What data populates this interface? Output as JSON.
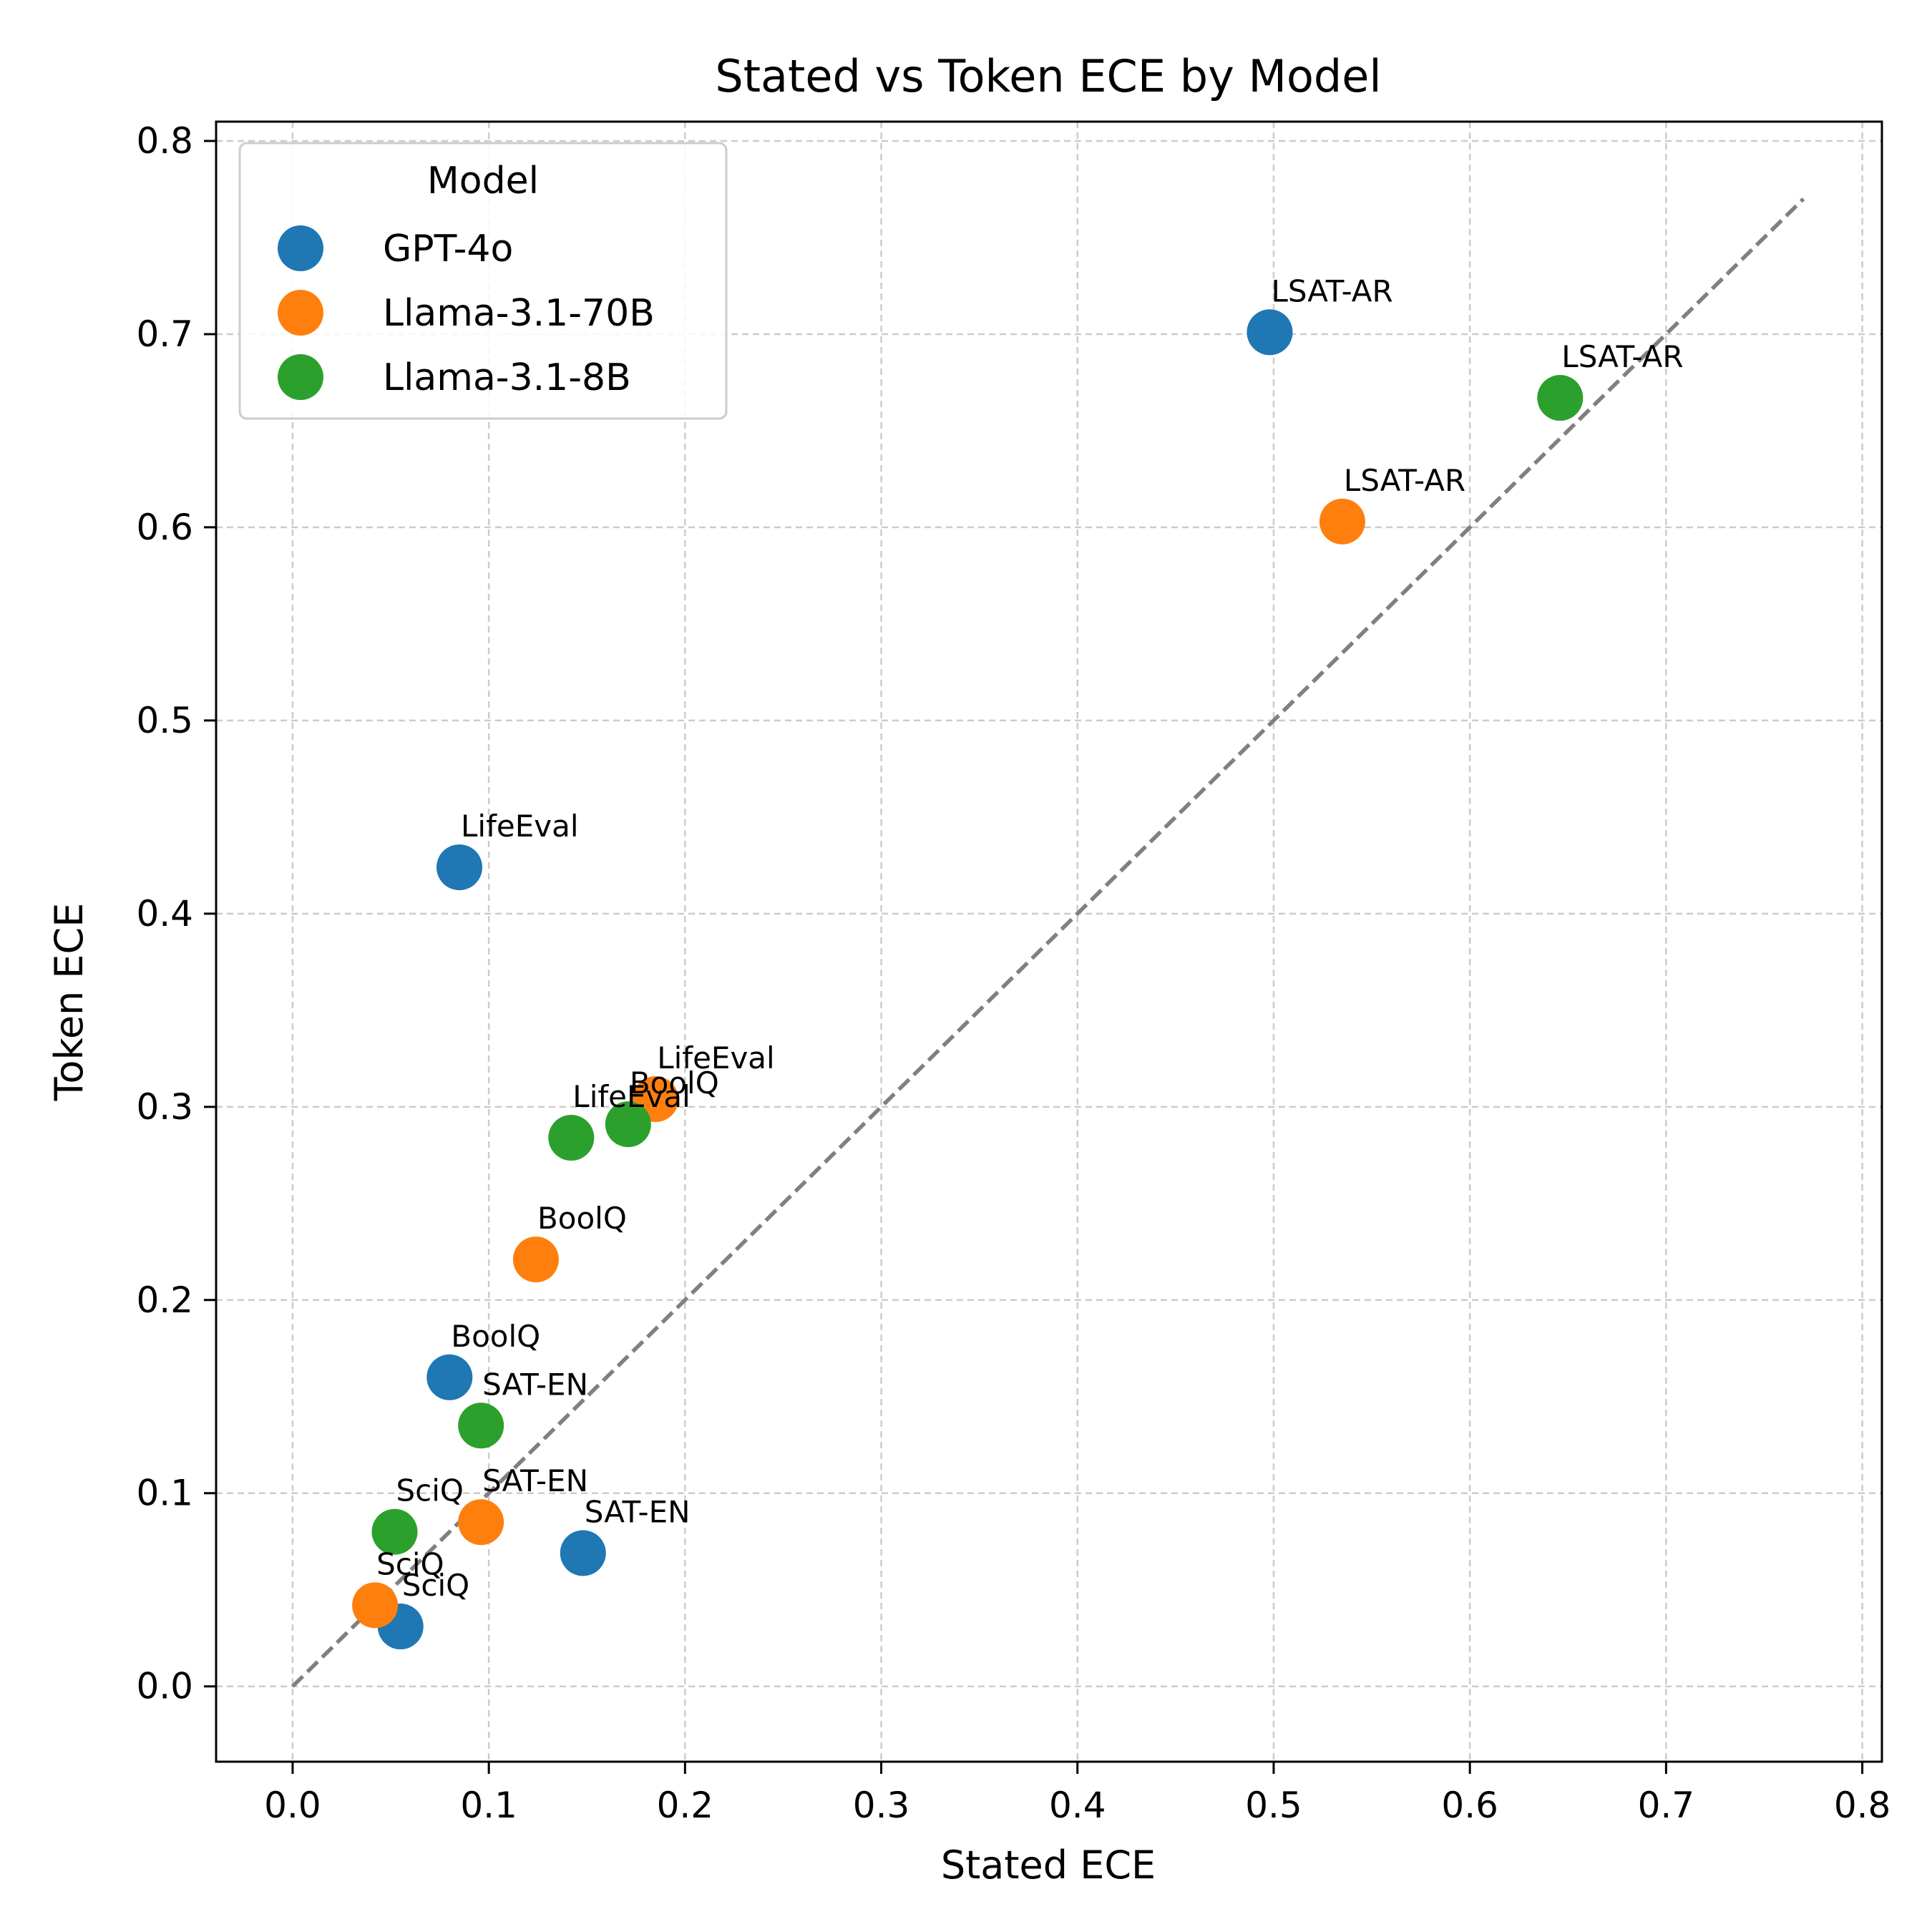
{
  "chart_data": {
    "type": "scatter",
    "title": "Stated vs Token ECE by Model",
    "xlabel": "Stated ECE",
    "ylabel": "Token ECE",
    "xlim": [
      -0.039,
      0.81
    ],
    "ylim": [
      -0.039,
      0.81
    ],
    "xticks": [
      "0.0",
      "0.1",
      "0.2",
      "0.3",
      "0.4",
      "0.5",
      "0.6",
      "0.7",
      "0.8"
    ],
    "yticks": [
      "0.0",
      "0.1",
      "0.2",
      "0.3",
      "0.4",
      "0.5",
      "0.6",
      "0.7",
      "0.8"
    ],
    "grid": true,
    "reference_line": {
      "style": "dashed",
      "color": "#808080",
      "from": [
        0,
        0
      ],
      "to": [
        0.77,
        0.77
      ]
    },
    "legend": {
      "title": "Model",
      "placement": "top-left"
    },
    "series": [
      {
        "name": "GPT-4o",
        "color": "#1f77b4",
        "points": [
          {
            "label": "LSAT-AR",
            "x": 0.498,
            "y": 0.701
          },
          {
            "label": "LifeEval",
            "x": 0.085,
            "y": 0.424
          },
          {
            "label": "BoolQ",
            "x": 0.08,
            "y": 0.16
          },
          {
            "label": "SAT-EN",
            "x": 0.148,
            "y": 0.069
          },
          {
            "label": "SciQ",
            "x": 0.055,
            "y": 0.031
          }
        ]
      },
      {
        "name": "Llama-3.1-70B",
        "color": "#ff7f0e",
        "points": [
          {
            "label": "LSAT-AR",
            "x": 0.535,
            "y": 0.603
          },
          {
            "label": "LifeEval",
            "x": 0.185,
            "y": 0.304
          },
          {
            "label": "BoolQ",
            "x": 0.124,
            "y": 0.221
          },
          {
            "label": "SAT-EN",
            "x": 0.096,
            "y": 0.085
          },
          {
            "label": "SciQ",
            "x": 0.042,
            "y": 0.042
          }
        ]
      },
      {
        "name": "Llama-3.1-8B",
        "color": "#2ca02c",
        "points": [
          {
            "label": "LSAT-AR",
            "x": 0.646,
            "y": 0.667
          },
          {
            "label": "BoolQ",
            "x": 0.171,
            "y": 0.291
          },
          {
            "label": "LifeEval",
            "x": 0.142,
            "y": 0.284
          },
          {
            "label": "SAT-EN",
            "x": 0.096,
            "y": 0.135
          },
          {
            "label": "SciQ",
            "x": 0.052,
            "y": 0.08
          }
        ]
      }
    ]
  }
}
